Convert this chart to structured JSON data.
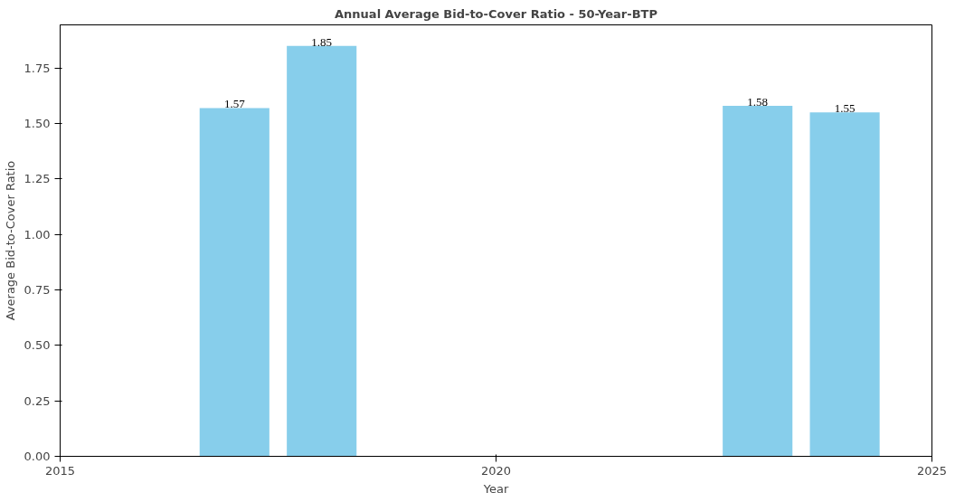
{
  "chart_data": {
    "type": "bar",
    "title": "Annual Average Bid-to-Cover Ratio - 50-Year-BTP",
    "xlabel": "Year",
    "ylabel": "Average Bid-to-Cover Ratio",
    "x": [
      2017,
      2018,
      2023,
      2024
    ],
    "values": [
      1.57,
      1.85,
      1.58,
      1.55
    ],
    "color": "#87ceeb",
    "data_labels": true,
    "xlim": [
      2015,
      2025
    ],
    "xticks": [
      2015,
      2020,
      2025
    ],
    "ylim": [
      0,
      1.945
    ],
    "yticks": [
      {
        "value": 0,
        "label": "0.00"
      },
      {
        "value": 0.25,
        "label": "0.25"
      },
      {
        "value": 0.5,
        "label": "0.50"
      },
      {
        "value": 0.75,
        "label": "0.75"
      },
      {
        "value": 1,
        "label": "1.00"
      },
      {
        "value": 1.25,
        "label": "1.25"
      },
      {
        "value": 1.5,
        "label": "1.50"
      },
      {
        "value": 1.75,
        "label": "1.75"
      }
    ],
    "grid": false
  }
}
